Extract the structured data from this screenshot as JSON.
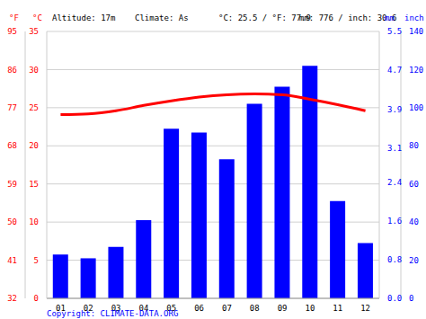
{
  "chart_data": {
    "type": "bar_line",
    "header": [
      "Altitude: 17m",
      "Climate: As",
      "°C: 25.5 / °F: 77.9",
      "mm: 776 / inch: 30.6"
    ],
    "credit": "Copyright: CLIMATE-DATA.ORG",
    "categories": [
      "01",
      "02",
      "03",
      "04",
      "05",
      "06",
      "07",
      "08",
      "09",
      "10",
      "11",
      "12"
    ],
    "series": [
      {
        "name": "mm",
        "type": "bar",
        "axis": "y2",
        "color": "#0000ff",
        "values": [
          23,
          21,
          27,
          41,
          89,
          87,
          73,
          102,
          111,
          122,
          51,
          29
        ]
      },
      {
        "name": "°C",
        "type": "line",
        "axis": "y",
        "color": "#ff0000",
        "values": [
          24.1,
          24.2,
          24.6,
          25.3,
          25.9,
          26.4,
          26.7,
          26.8,
          26.7,
          26.1,
          25.4,
          24.6
        ]
      }
    ],
    "y_label": "°C",
    "ylim": [
      0,
      35
    ],
    "yticks": [
      0,
      5,
      10,
      15,
      20,
      25,
      30,
      35
    ],
    "y2_label": "mm",
    "y2lim": [
      0,
      140
    ],
    "y2ticks": [
      0,
      20,
      40,
      60,
      80,
      100,
      120,
      140
    ],
    "fahrenheit_axis": {
      "label": "°F",
      "lim": [
        32,
        95
      ],
      "ticks": [
        32,
        41,
        50,
        59,
        68,
        77,
        86,
        95
      ]
    },
    "inch_axis": {
      "label": "inch",
      "lim": [
        0,
        5.5
      ],
      "ticks": [
        {
          "value": 0,
          "label": "0.0"
        },
        0.8,
        1.6,
        2.4,
        3.1,
        3.9,
        4.7,
        5.5
      ]
    },
    "grid": true
  }
}
